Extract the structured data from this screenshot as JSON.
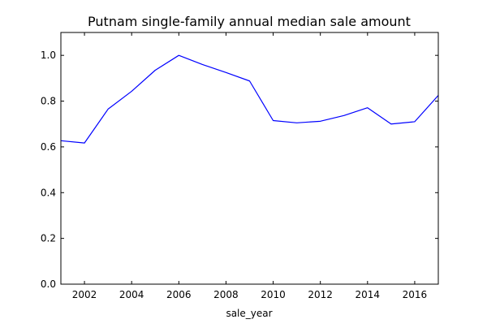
{
  "chart_data": {
    "type": "line",
    "title": "Putnam single-family annual median sale amount",
    "xlabel": "sale_year",
    "ylabel": "",
    "xlim": [
      2001,
      2017
    ],
    "ylim": [
      0.0,
      1.1
    ],
    "grid": false,
    "legend": "none",
    "x_ticks": [
      2002,
      2004,
      2006,
      2008,
      2010,
      2012,
      2014,
      2016
    ],
    "x_tick_labels": [
      "2002",
      "2004",
      "2006",
      "2008",
      "2010",
      "2012",
      "2014",
      "2016"
    ],
    "y_ticks": [
      0.0,
      0.2,
      0.4,
      0.6,
      0.8,
      1.0
    ],
    "y_tick_labels": [
      "0.0",
      "0.2",
      "0.4",
      "0.6",
      "0.8",
      "1.0"
    ],
    "series": [
      {
        "color": "#0000ff",
        "x": [
          2001,
          2002,
          2003,
          2004,
          2005,
          2006,
          2007,
          2008,
          2009,
          2010,
          2011,
          2012,
          2013,
          2014,
          2015,
          2016,
          2017
        ],
        "y": [
          0.627,
          0.617,
          0.765,
          0.843,
          0.935,
          1.0,
          0.96,
          0.925,
          0.888,
          0.715,
          0.705,
          0.712,
          0.737,
          0.771,
          0.7,
          0.71,
          0.825
        ]
      }
    ]
  }
}
